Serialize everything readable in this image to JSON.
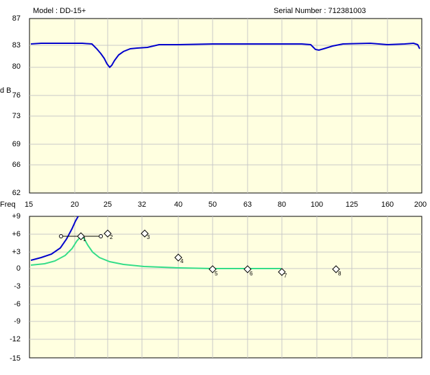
{
  "header": {
    "model_label": "Model : DD-15+",
    "serial_label": "Serial Number : 712381003"
  },
  "top_graph": {
    "y_axis_title": "d B",
    "y_ticks": [
      "87",
      "83",
      "80",
      "76",
      "73",
      "69",
      "66",
      "62"
    ],
    "background": "#ffffe0",
    "curve_color": "#0000cc"
  },
  "x_axis": {
    "title": "Freq",
    "ticks": [
      "15",
      "20",
      "25",
      "32",
      "40",
      "50",
      "63",
      "80",
      "100",
      "125",
      "160",
      "200"
    ]
  },
  "eq_graph": {
    "y_ticks": [
      "+9",
      "+6",
      "+3",
      "0",
      "-3",
      "-6",
      "-9",
      "-12",
      "-15"
    ],
    "background": "#ffffe0",
    "summed_curve_color": "#0000cc",
    "band_curve_color": "#33dd88",
    "bands": [
      {
        "label": "1",
        "freq": 21,
        "gain_db": 5.7,
        "selected": true
      },
      {
        "label": "2",
        "freq": 25,
        "gain_db": 6.2
      },
      {
        "label": "3",
        "freq": 32,
        "gain_db": 6.2
      },
      {
        "label": "4",
        "freq": 40,
        "gain_db": 2.0
      },
      {
        "label": "5",
        "freq": 50,
        "gain_db": 0
      },
      {
        "label": "6",
        "freq": 63,
        "gain_db": 0
      },
      {
        "label": "7",
        "freq": 80,
        "gain_db": -0.5
      },
      {
        "label": "8",
        "freq": 112,
        "gain_db": 0
      }
    ]
  }
}
